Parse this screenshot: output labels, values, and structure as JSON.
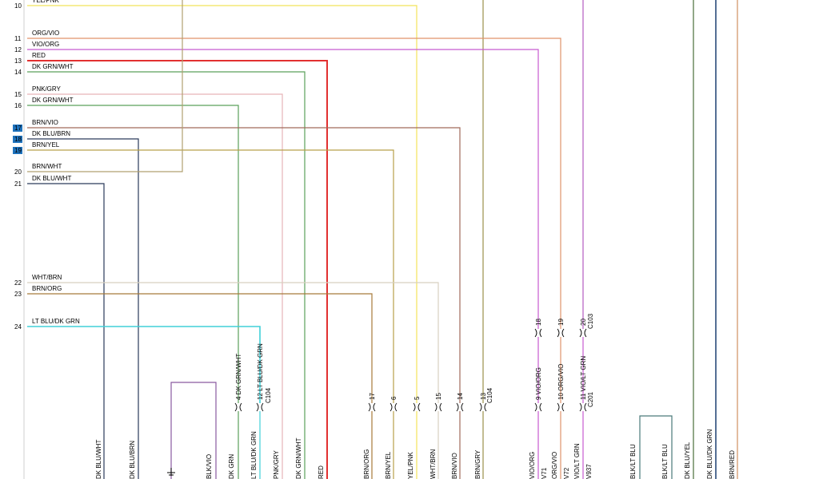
{
  "harness_left": [
    {
      "pin": "10",
      "label": "YEL/PNK",
      "color": "#f2e35a"
    },
    {
      "pin": "11",
      "label": "ORG/VIO",
      "color": "#e0926a"
    },
    {
      "pin": "12",
      "label": "VIO/ORG",
      "color": "#c85ad0"
    },
    {
      "pin": "13",
      "label": "RED",
      "color": "#e23030"
    },
    {
      "pin": "14",
      "label": "DK GRN/WHT",
      "color": "#5aa05a"
    },
    {
      "pin": "15",
      "label": "PNK/GRY",
      "color": "#e6b3b8"
    },
    {
      "pin": "16",
      "label": "DK GRN/WHT",
      "color": "#5aa05a"
    },
    {
      "pin": "17",
      "label": "BRN/VIO",
      "color": "#a06a5a",
      "highlight": true
    },
    {
      "pin": "18",
      "label": "DK BLU/BRN",
      "color": "#2a3a5a",
      "highlight": true
    },
    {
      "pin": "19",
      "label": "BRN/YEL",
      "color": "#b8a04a",
      "highlight": true
    },
    {
      "pin": "20",
      "label": "BRN/WHT",
      "color": "#b0a070"
    },
    {
      "pin": "21",
      "label": "DK BLU/WHT",
      "color": "#2a3a5a"
    },
    {
      "pin": "22",
      "label": "WHT/BRN",
      "color": "#d8d0c0"
    },
    {
      "pin": "23",
      "label": "BRN/ORG",
      "color": "#a87a3a"
    },
    {
      "pin": "24",
      "label": "LT BLU/DK GRN",
      "color": "#40d0d8"
    }
  ],
  "connectors_c104": [
    {
      "pin": "4",
      "label": "DK GRN/WHT"
    },
    {
      "pin": "12",
      "label": "LT BLU/DK GRN"
    },
    {
      "pin": "17",
      "label": ""
    },
    {
      "pin": "6",
      "label": ""
    },
    {
      "pin": "5",
      "label": ""
    },
    {
      "pin": "15",
      "label": ""
    },
    {
      "pin": "14",
      "label": ""
    },
    {
      "pin": "13",
      "label": ""
    }
  ],
  "connectors_c201": [
    {
      "pin": "9",
      "label": "VIO/ORG"
    },
    {
      "pin": "10",
      "label": "ORG/VIO"
    },
    {
      "pin": "11",
      "label": "VIO/LT GRN"
    }
  ],
  "connectors_c103": [
    {
      "pin": "18",
      "label": ""
    },
    {
      "pin": "19",
      "label": ""
    },
    {
      "pin": "20",
      "label": ""
    }
  ],
  "connector_names": {
    "c104": "C104",
    "c201": "C201",
    "c103": "C103"
  },
  "bottom_labels": [
    "DK BLU/WHT",
    "DK BLU/BRN",
    "BLK/VIO",
    "DK GRN",
    "LT BLU/DK GRN",
    "PNK/GRY",
    "DK GRN/WHT",
    "RED",
    "BRN/ORG",
    "BRN/YEL",
    "YEL/PNK",
    "WHT/BRN",
    "BRN/VIO",
    "BRN/GRY",
    "VIO/ORG",
    "V71",
    "ORG/VIO",
    "V72",
    "VIO/LT GRN",
    "V937",
    "BLK/LT BLU",
    "BLK/LT BLU",
    "DK BLU/YEL",
    "DK BLU/DK GRN",
    "BRN/RED"
  ]
}
